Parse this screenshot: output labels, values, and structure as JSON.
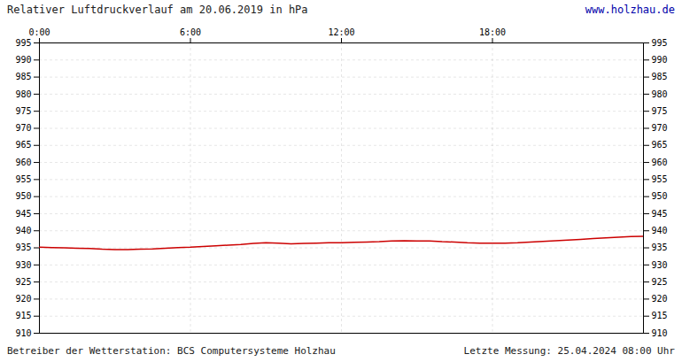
{
  "chart_data": {
    "type": "line",
    "title": "Relativer Luftdruckverlauf am 20.06.2019 in hPa",
    "annotations": [
      "www.holzhau.de",
      "Betreiber der Wetterstation: BCS Computersysteme Holzhau",
      "Letzte Messung: 25.04.2024 08:00 Uhr"
    ],
    "x": [
      0.0,
      0.5,
      1.0,
      1.5,
      2.0,
      2.5,
      3.0,
      3.5,
      4.0,
      4.5,
      5.0,
      5.5,
      6.0,
      6.5,
      7.0,
      7.5,
      8.0,
      8.5,
      9.0,
      9.5,
      10.0,
      10.5,
      11.0,
      11.5,
      12.0,
      12.5,
      13.0,
      13.5,
      14.0,
      14.5,
      15.0,
      15.5,
      16.0,
      16.5,
      17.0,
      17.5,
      18.0,
      18.5,
      19.0,
      19.5,
      20.0,
      20.5,
      21.0,
      21.5,
      22.0,
      22.5,
      23.0,
      23.5,
      24.0
    ],
    "values": [
      935.2,
      935.1,
      935.0,
      934.9,
      934.8,
      934.6,
      934.5,
      934.5,
      934.6,
      934.7,
      934.9,
      935.1,
      935.2,
      935.4,
      935.6,
      935.8,
      936.0,
      936.3,
      936.5,
      936.4,
      936.2,
      936.3,
      936.4,
      936.5,
      936.5,
      936.6,
      936.7,
      936.8,
      937.0,
      937.1,
      937.0,
      937.0,
      936.8,
      936.7,
      936.5,
      936.4,
      936.4,
      936.4,
      936.5,
      936.7,
      936.9,
      937.1,
      937.3,
      937.5,
      937.7,
      937.9,
      938.1,
      938.3,
      938.4
    ],
    "color": "#cc0000",
    "xlim": [
      0,
      24
    ],
    "xticks": [
      {
        "value": 0,
        "label": "0:00"
      },
      {
        "value": 6,
        "label": "6:00"
      },
      {
        "value": 12,
        "label": "12:00"
      },
      {
        "value": 18,
        "label": "18:00"
      }
    ],
    "ylim": [
      910,
      995
    ],
    "yticks": [
      910,
      915,
      920,
      925,
      930,
      935,
      940,
      945,
      950,
      955,
      960,
      965,
      970,
      975,
      980,
      985,
      990,
      995
    ],
    "grid": true
  }
}
